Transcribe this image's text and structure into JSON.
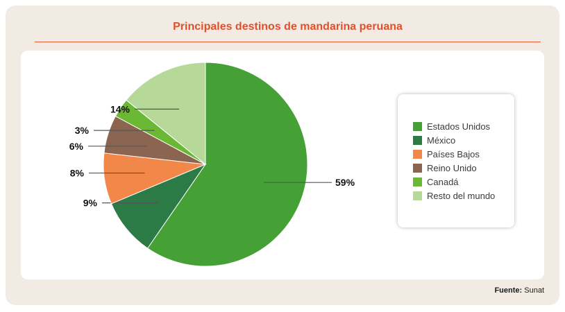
{
  "title": "Principales destinos de mandarina peruana",
  "source": {
    "label": "Fuente:",
    "value": "Sunat"
  },
  "chart_data": {
    "type": "pie",
    "title": "Principales destinos de mandarina peruana",
    "categories": [
      "Estados Unidos",
      "México",
      "Países Bajos",
      "Reino Unido",
      "Canadá",
      "Resto del mundo"
    ],
    "values": [
      59,
      9,
      8,
      6,
      3,
      14
    ],
    "labels": [
      "59%",
      "9%",
      "8%",
      "6%",
      "3%",
      "14%"
    ],
    "colors": [
      "#45a035",
      "#2c7a45",
      "#f2874a",
      "#8c6551",
      "#6ab834",
      "#b6d999"
    ],
    "legend_position": "right"
  }
}
